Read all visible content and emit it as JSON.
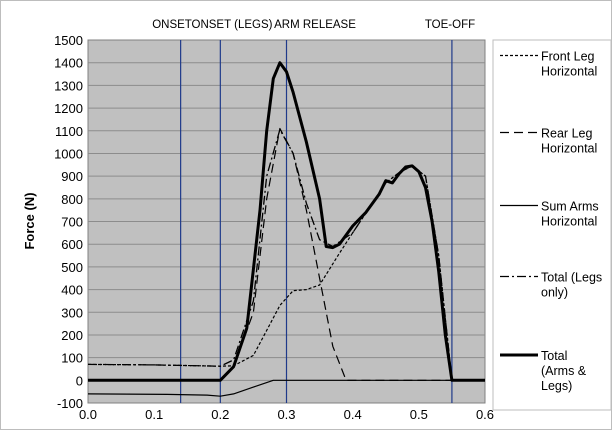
{
  "chart_data": {
    "type": "line",
    "title": "",
    "xlabel": "",
    "ylabel": "Force (N)",
    "xlim": [
      0,
      0.6
    ],
    "ylim": [
      -100,
      1500
    ],
    "x_ticks": [
      "0.0",
      "0.1",
      "0.2",
      "0.3",
      "0.4",
      "0.5",
      "0.6"
    ],
    "y_ticks": [
      "-100",
      "0",
      "100",
      "200",
      "300",
      "400",
      "500",
      "600",
      "700",
      "800",
      "900",
      "1000",
      "1100",
      "1200",
      "1300",
      "1400",
      "1500"
    ],
    "grid": true,
    "legend_position": "right",
    "event_markers": [
      {
        "label": "ONSET",
        "x": 0.14
      },
      {
        "label": "ONSET (LEGS)",
        "x": 0.2
      },
      {
        "label": "ARM RELEASE",
        "x": 0.3
      },
      {
        "label": "TOE-OFF",
        "x": 0.55
      }
    ],
    "series": [
      {
        "name": "Front Leg Horizontal",
        "color": "#000000",
        "dash": "3,2",
        "width": 1.2,
        "points": [
          [
            0,
            70
          ],
          [
            0.1,
            68
          ],
          [
            0.2,
            62
          ],
          [
            0.22,
            64
          ],
          [
            0.25,
            110
          ],
          [
            0.27,
            220
          ],
          [
            0.29,
            330
          ],
          [
            0.31,
            395
          ],
          [
            0.33,
            400
          ],
          [
            0.35,
            420
          ],
          [
            0.38,
            560
          ],
          [
            0.4,
            650
          ],
          [
            0.45,
            870
          ],
          [
            0.47,
            915
          ],
          [
            0.49,
            945
          ],
          [
            0.51,
            900
          ],
          [
            0.53,
            550
          ],
          [
            0.55,
            0
          ],
          [
            0.6,
            0
          ]
        ]
      },
      {
        "name": "Rear Leg Horizontal",
        "color": "#000000",
        "dash": "9,5",
        "width": 1.2,
        "points": [
          [
            0,
            0
          ],
          [
            0.2,
            0
          ],
          [
            0.22,
            60
          ],
          [
            0.25,
            300
          ],
          [
            0.27,
            800
          ],
          [
            0.29,
            1110
          ],
          [
            0.31,
            1000
          ],
          [
            0.33,
            750
          ],
          [
            0.35,
            450
          ],
          [
            0.37,
            150
          ],
          [
            0.39,
            0
          ],
          [
            0.6,
            0
          ]
        ]
      },
      {
        "name": "Sum Arms Horizontal",
        "color": "#000000",
        "dash": "",
        "width": 1.2,
        "points": [
          [
            0,
            -60
          ],
          [
            0.12,
            -62
          ],
          [
            0.18,
            -65
          ],
          [
            0.2,
            -70
          ],
          [
            0.22,
            -60
          ],
          [
            0.25,
            -30
          ],
          [
            0.27,
            -10
          ],
          [
            0.28,
            0
          ],
          [
            0.6,
            0
          ]
        ]
      },
      {
        "name": "Total (Legs only)",
        "color": "#000000",
        "dash": "9,3,2,3",
        "width": 1.3,
        "points": [
          [
            0,
            70
          ],
          [
            0.1,
            68
          ],
          [
            0.2,
            62
          ],
          [
            0.22,
            90
          ],
          [
            0.25,
            350
          ],
          [
            0.27,
            900
          ],
          [
            0.29,
            1105
          ],
          [
            0.31,
            1000
          ],
          [
            0.33,
            780
          ],
          [
            0.35,
            620
          ],
          [
            0.37,
            590
          ],
          [
            0.4,
            650
          ],
          [
            0.45,
            870
          ],
          [
            0.47,
            915
          ],
          [
            0.49,
            945
          ],
          [
            0.51,
            900
          ],
          [
            0.53,
            550
          ],
          [
            0.55,
            0
          ],
          [
            0.6,
            0
          ]
        ]
      },
      {
        "name": "Total (Arms & Legs)",
        "color": "#000000",
        "dash": "",
        "width": 3,
        "points": [
          [
            0,
            0
          ],
          [
            0.2,
            0
          ],
          [
            0.22,
            60
          ],
          [
            0.24,
            230
          ],
          [
            0.26,
            750
          ],
          [
            0.27,
            1100
          ],
          [
            0.28,
            1330
          ],
          [
            0.29,
            1400
          ],
          [
            0.3,
            1360
          ],
          [
            0.31,
            1270
          ],
          [
            0.33,
            1050
          ],
          [
            0.35,
            800
          ],
          [
            0.36,
            590
          ],
          [
            0.37,
            585
          ],
          [
            0.38,
            600
          ],
          [
            0.4,
            680
          ],
          [
            0.42,
            740
          ],
          [
            0.44,
            820
          ],
          [
            0.45,
            880
          ],
          [
            0.46,
            870
          ],
          [
            0.47,
            910
          ],
          [
            0.48,
            940
          ],
          [
            0.49,
            945
          ],
          [
            0.5,
            920
          ],
          [
            0.51,
            850
          ],
          [
            0.52,
            700
          ],
          [
            0.53,
            480
          ],
          [
            0.54,
            200
          ],
          [
            0.55,
            0
          ],
          [
            0.6,
            0
          ]
        ]
      }
    ]
  },
  "legend": {
    "items": [
      {
        "lines": [
          "Front Leg",
          "Horizontal"
        ]
      },
      {
        "lines": [
          "Rear Leg",
          "Horizontal"
        ]
      },
      {
        "lines": [
          "Sum Arms",
          "Horizontal"
        ]
      },
      {
        "lines": [
          "Total (Legs",
          "only)"
        ]
      },
      {
        "lines": [
          "Total",
          "(Arms &",
          "Legs)"
        ]
      }
    ]
  }
}
